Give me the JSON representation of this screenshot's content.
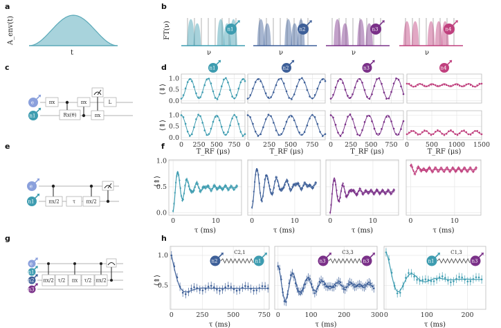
{
  "panel_labels": [
    "a",
    "b",
    "c",
    "d",
    "e",
    "f",
    "g",
    "h"
  ],
  "colors": {
    "n1": "#3d9cb0",
    "n2": "#3d5f98",
    "n3": "#7a3088",
    "n4": "#c0407e",
    "electron": "#8aa0dc",
    "pulse_fill": "#a8d3dc",
    "pulse_line": "#5aa9b8"
  },
  "panel_a": {
    "ylabel": "A_env(t)",
    "xlabel": "t"
  },
  "panel_b": {
    "ylabel": "FT(ν)",
    "xlabel": "ν",
    "nuclei": [
      "n1",
      "n2",
      "n3",
      "n4"
    ]
  },
  "panel_c": {
    "qubits": [
      "e",
      "n1"
    ],
    "gates": [
      "πx",
      "πx",
      "Rx(θ)",
      "πx",
      "L",
      "πx"
    ]
  },
  "panel_d": {
    "ylabel_top": "⟨⇓⟩",
    "ylabel_bottom": "⟨⇑⟩",
    "xlabel": "T_RF (μs)",
    "xticks": [
      "0",
      "250",
      "500",
      "750"
    ],
    "xticks_last": [
      "0",
      "500",
      "1000",
      "1500"
    ],
    "yticks": [
      "0.0",
      "0.5",
      "1.0"
    ],
    "nuclei": [
      "n1",
      "n2",
      "n3",
      "n4"
    ]
  },
  "panel_e": {
    "qubits": [
      "e",
      "n1"
    ],
    "gates": [
      "πx/2",
      "τ",
      "πx/2"
    ]
  },
  "panel_f": {
    "ylabel": "⟨⇑⟩",
    "xlabel": "τ (ms)",
    "xticks": [
      "0",
      "10"
    ],
    "yticks": [
      "0.0",
      "0.5",
      "1.0"
    ]
  },
  "panel_g": {
    "qubits": [
      "e",
      "n1",
      "n2",
      "n3"
    ],
    "gates": [
      "πx/2",
      "τ/2",
      "πx",
      "τ/2",
      "πx/2"
    ]
  },
  "panel_h": {
    "ylabel": "⟨⇑⟩",
    "xlabel": "τ (ms)",
    "yticks": [
      "0.5",
      "1.0"
    ],
    "subpanels": [
      {
        "coupling": "C2,1",
        "pair": [
          "n2",
          "n1"
        ],
        "xticks": [
          "0",
          "250",
          "500",
          "750"
        ]
      },
      {
        "coupling": "C3,3",
        "pair": [
          "n3",
          "n3"
        ],
        "xticks": [
          "0",
          "100",
          "200",
          "300"
        ]
      },
      {
        "coupling": "C1,3",
        "pair": [
          "n1",
          "n3"
        ],
        "xticks": [
          "0",
          "100",
          "200"
        ]
      }
    ]
  }
}
